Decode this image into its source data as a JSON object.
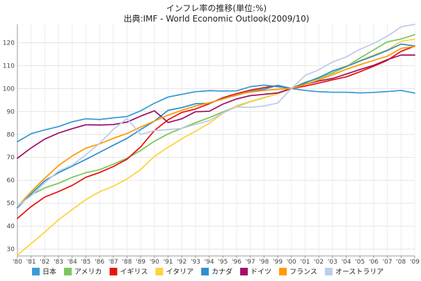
{
  "chart_data": {
    "type": "line",
    "title": "インフレ率の推移(単位:%)",
    "subtitle": "出典:IMF - World Economic Outlook(2009/10)",
    "x": [
      "'80",
      "'81",
      "'82",
      "'83",
      "'84",
      "'85",
      "'86",
      "'87",
      "'88",
      "'89",
      "'90",
      "'91",
      "'92",
      "'93",
      "'94",
      "'95",
      "'96",
      "'97",
      "'98",
      "'99",
      "'00",
      "'01",
      "'02",
      "'03",
      "'04",
      "'05",
      "'06",
      "'07",
      "'08",
      "'09"
    ],
    "ylim": [
      27,
      128
    ],
    "yticks": [
      30,
      40,
      50,
      60,
      70,
      80,
      90,
      100,
      110,
      120
    ],
    "grid": true,
    "legend_position": "bottom",
    "series": [
      {
        "name": "日本",
        "color": "#3a9bd8",
        "values": [
          76.8,
          80.3,
          82.0,
          83.4,
          85.5,
          86.8,
          86.5,
          87.2,
          87.8,
          90.3,
          93.6,
          96.3,
          97.5,
          98.6,
          99.1,
          98.9,
          99.0,
          100.8,
          101.5,
          100.8,
          100.0,
          99.2,
          98.6,
          98.4,
          98.4,
          98.1,
          98.3,
          98.7,
          99.2,
          98.0
        ]
      },
      {
        "name": "アメリカ",
        "color": "#7cc65c",
        "values": [
          48.5,
          53.6,
          56.7,
          58.7,
          61.3,
          63.3,
          64.6,
          67.0,
          69.6,
          73.0,
          77.0,
          80.2,
          82.7,
          85.1,
          87.3,
          89.8,
          92.2,
          94.3,
          96.0,
          97.7,
          100.0,
          102.8,
          104.4,
          106.8,
          109.6,
          113.3,
          116.8,
          120.4,
          121.6,
          123.5
        ]
      },
      {
        "name": "イギリス",
        "color": "#e8140f",
        "values": [
          43.4,
          48.5,
          52.7,
          55.1,
          57.8,
          61.3,
          63.4,
          66.0,
          69.2,
          74.6,
          81.7,
          86.4,
          89.6,
          91.1,
          93.4,
          96.0,
          97.8,
          99.3,
          100.4,
          101.3,
          100.0,
          101.1,
          102.4,
          103.8,
          105.1,
          107.3,
          109.7,
          112.3,
          116.2,
          118.5
        ]
      },
      {
        "name": "イタリア",
        "color": "#ffd23f",
        "values": [
          27.4,
          32.4,
          37.4,
          42.8,
          47.2,
          51.6,
          55.0,
          57.4,
          60.6,
          64.7,
          70.4,
          74.4,
          78.1,
          81.4,
          84.8,
          89.2,
          92.5,
          94.4,
          96.1,
          97.7,
          100.0,
          102.3,
          104.8,
          107.5,
          109.9,
          112.2,
          114.6,
          116.8,
          120.6,
          121.5
        ]
      },
      {
        "name": "カナダ",
        "color": "#2f8fce",
        "values": [
          48.0,
          54.1,
          59.8,
          63.3,
          66.2,
          69.1,
          72.2,
          75.3,
          78.3,
          82.1,
          85.8,
          90.5,
          91.7,
          93.4,
          93.6,
          95.6,
          97.1,
          98.7,
          99.7,
          101.4,
          100.0,
          102.5,
          104.8,
          107.7,
          109.6,
          112.0,
          114.2,
          116.6,
          119.4,
          118.6
        ]
      },
      {
        "name": "ドイツ",
        "color": "#a0106a",
        "values": [
          69.6,
          74.1,
          78.0,
          80.6,
          82.5,
          84.2,
          84.1,
          84.3,
          85.4,
          88.0,
          90.3,
          85.2,
          86.8,
          89.9,
          90.1,
          93.2,
          95.5,
          96.9,
          97.5,
          98.1,
          100.0,
          101.9,
          103.3,
          104.4,
          106.3,
          108.3,
          110.1,
          112.6,
          114.6,
          114.6
        ]
      },
      {
        "name": "フランス",
        "color": "#ff9b00",
        "values": [
          48.5,
          55.0,
          60.9,
          66.4,
          70.6,
          74.0,
          75.9,
          78.3,
          80.4,
          83.2,
          85.8,
          88.4,
          90.5,
          92.4,
          93.8,
          95.4,
          97.3,
          98.5,
          99.2,
          99.7,
          100.0,
          101.8,
          103.8,
          106.0,
          108.4,
          110.4,
          112.3,
          114.1,
          117.5,
          118.4
        ]
      },
      {
        "name": "オーストラリア",
        "color": "#bccde8",
        "values": [
          48.8,
          53.2,
          58.9,
          64.0,
          66.6,
          71.1,
          76.1,
          82.2,
          86.9,
          80.0,
          81.7,
          82.1,
          82.6,
          84.4,
          86.0,
          89.4,
          92.0,
          91.8,
          92.4,
          93.7,
          100.0,
          105.7,
          108.2,
          111.6,
          113.8,
          117.1,
          119.7,
          122.8,
          126.9,
          128.0
        ]
      }
    ]
  }
}
